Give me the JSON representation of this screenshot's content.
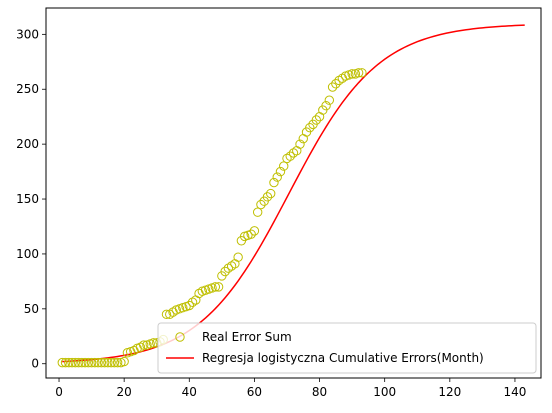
{
  "chart_data": {
    "type": "scatter",
    "xlim": [
      -4,
      148
    ],
    "ylim": [
      -13,
      324
    ],
    "x_ticks": [
      0,
      20,
      40,
      60,
      80,
      100,
      120,
      140
    ],
    "y_ticks": [
      0,
      50,
      100,
      150,
      200,
      250,
      300
    ],
    "grid": false,
    "legend_position": "lower-right",
    "colors": {
      "scatter": "#bfbf00",
      "line": "#ff0000",
      "axes": "#000000"
    },
    "series": [
      {
        "name": "Real Error Sum",
        "kind": "scatter",
        "x": [
          1,
          2,
          3,
          4,
          5,
          6,
          7,
          8,
          9,
          10,
          11,
          12,
          13,
          14,
          15,
          16,
          17,
          18,
          19,
          20,
          21,
          22,
          23,
          24,
          25,
          26,
          27,
          28,
          29,
          30,
          31,
          32,
          33,
          34,
          35,
          36,
          37,
          38,
          39,
          40,
          41,
          42,
          43,
          44,
          45,
          46,
          47,
          48,
          49,
          50,
          51,
          52,
          53,
          54,
          55,
          56,
          57,
          58,
          59,
          60,
          61,
          62,
          63,
          64,
          65,
          66,
          67,
          68,
          69,
          70,
          71,
          72,
          73,
          74,
          75,
          76,
          77,
          78,
          79,
          80,
          81,
          82,
          83,
          84,
          85,
          86,
          87,
          88,
          89,
          90,
          91,
          92,
          93
        ],
        "y": [
          1,
          1,
          1,
          1,
          1,
          1,
          1,
          1,
          1,
          1,
          1,
          1,
          1,
          1,
          1,
          1,
          1,
          1,
          1,
          2,
          10,
          11,
          12,
          14,
          15,
          17,
          17,
          18,
          19,
          19,
          20,
          22,
          45,
          45,
          47,
          49,
          50,
          51,
          52,
          53,
          56,
          58,
          64,
          66,
          67,
          68,
          69,
          70,
          70,
          80,
          84,
          87,
          89,
          91,
          97,
          112,
          116,
          117,
          118,
          121,
          138,
          145,
          148,
          152,
          155,
          165,
          170,
          175,
          180,
          187,
          189,
          192,
          194,
          200,
          205,
          211,
          215,
          218,
          222,
          225,
          231,
          235,
          240,
          252,
          255,
          258,
          260,
          262,
          263,
          264,
          264,
          265,
          265
        ]
      },
      {
        "name": "Regresja logistyczna Cumulative Errors(Month)",
        "kind": "line",
        "model": {
          "L": 310,
          "k": 0.0727,
          "x0": 70.6
        },
        "x_range": [
          1,
          143
        ]
      }
    ]
  }
}
